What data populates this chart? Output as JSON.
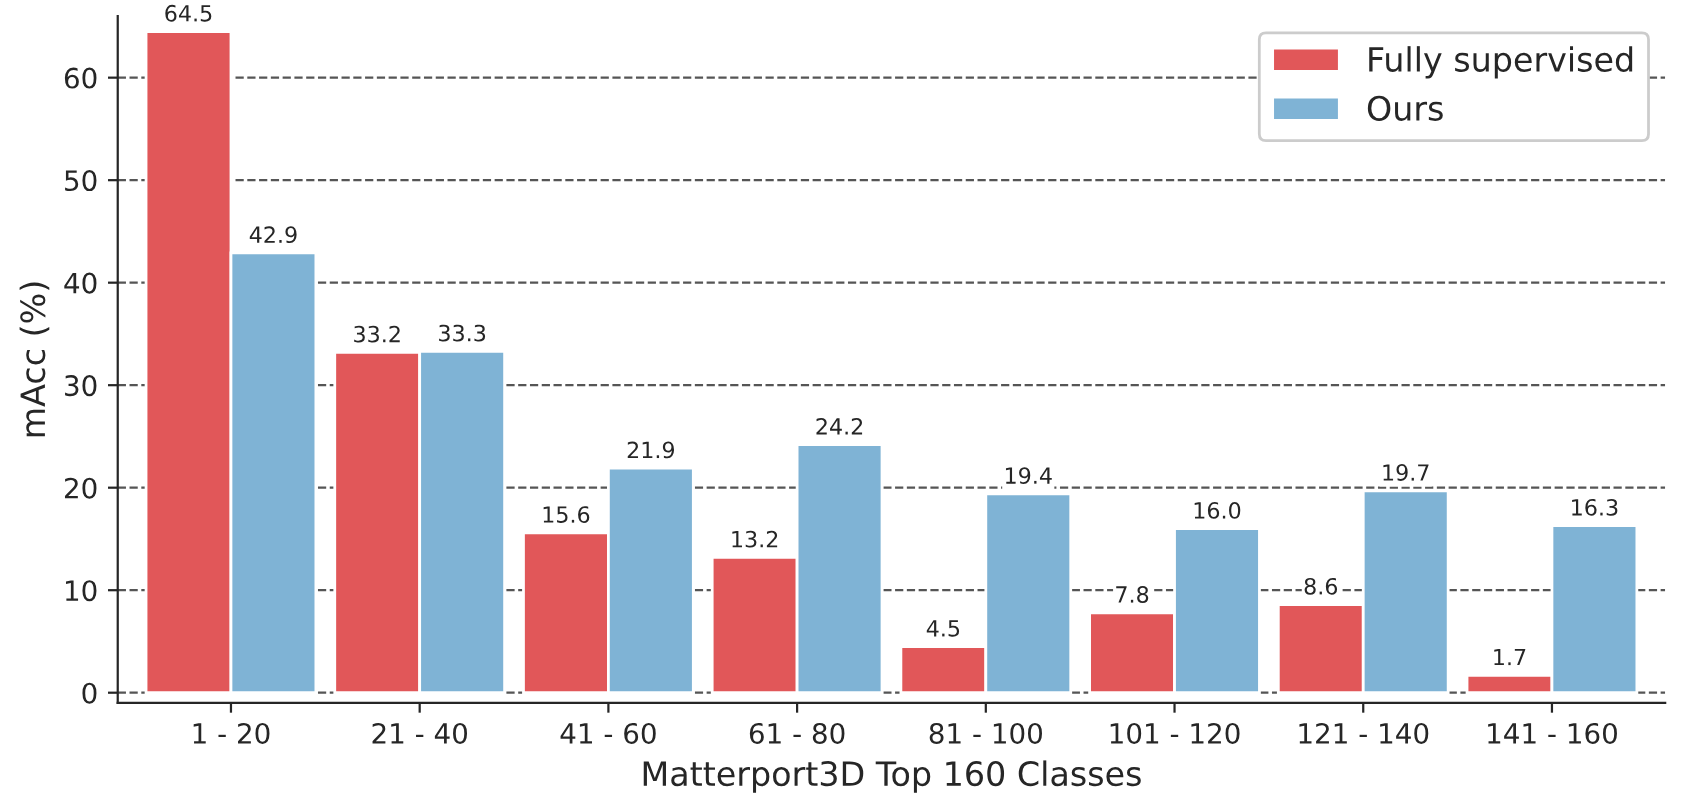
{
  "chart_data": {
    "type": "bar",
    "xlabel": "Matterport3D Top 160 Classes",
    "ylabel": "mAcc (%)",
    "categories": [
      "1 - 20",
      "21 - 40",
      "41 - 60",
      "61 - 80",
      "81 - 100",
      "101 - 120",
      "121 - 140",
      "141 - 160"
    ],
    "series": [
      {
        "name": "Fully supervised",
        "color": "#e15759",
        "values": [
          64.5,
          33.2,
          15.6,
          13.2,
          4.5,
          7.8,
          8.6,
          1.7
        ],
        "value_labels": [
          "64.5",
          "33.2",
          "15.6",
          "13.2",
          "4.5",
          "7.8",
          "8.6",
          "1.7"
        ]
      },
      {
        "name": "Ours",
        "color": "#7fb3d5",
        "values": [
          42.9,
          33.3,
          21.9,
          24.2,
          19.4,
          16.0,
          19.7,
          16.3
        ],
        "value_labels": [
          "42.9",
          "33.3",
          "21.9",
          "24.2",
          "19.4",
          "16.0",
          "19.7",
          "16.3"
        ]
      }
    ],
    "ylim": [
      -1,
      66
    ],
    "yticks": [
      0,
      10,
      20,
      30,
      40,
      50,
      60
    ],
    "grid": "y",
    "legend": "top right"
  }
}
